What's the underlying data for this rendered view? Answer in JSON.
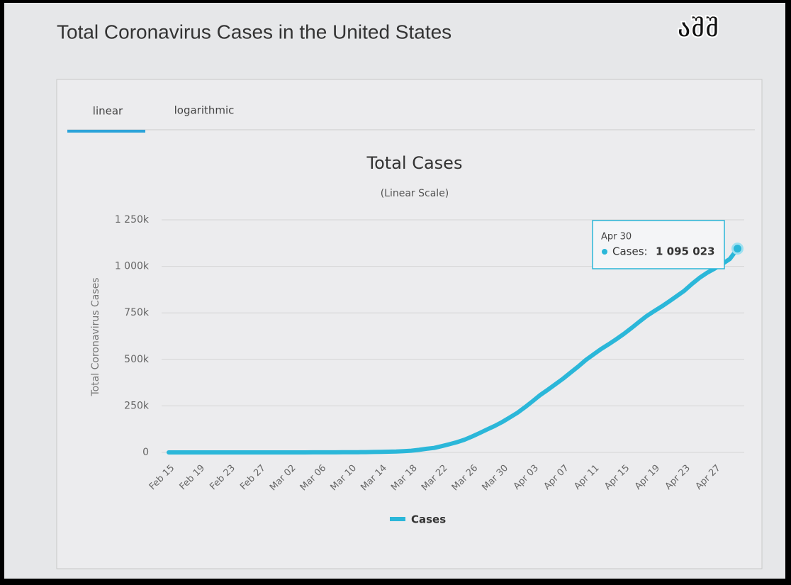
{
  "header": {
    "title": "Total Coronavirus Cases in the United States",
    "logo": "აშშ"
  },
  "tabs": [
    "linear",
    "logarithmic"
  ],
  "chart_data": {
    "type": "line",
    "title": "Total Cases",
    "subtitle": "(Linear Scale)",
    "y_label": "Total Coronavirus Cases",
    "categories": [
      "Feb 15",
      null,
      null,
      null,
      "Feb 19",
      null,
      null,
      null,
      "Feb 23",
      null,
      null,
      null,
      "Feb 27",
      null,
      null,
      null,
      "Mar 02",
      null,
      null,
      null,
      "Mar 06",
      null,
      null,
      null,
      "Mar 10",
      null,
      null,
      null,
      "Mar 14",
      null,
      null,
      null,
      "Mar 18",
      null,
      null,
      null,
      "Mar 22",
      null,
      null,
      null,
      "Mar 26",
      null,
      null,
      null,
      "Mar 30",
      null,
      null,
      null,
      "Apr 03",
      null,
      null,
      null,
      "Apr 07",
      null,
      null,
      null,
      "Apr 11",
      null,
      null,
      null,
      "Apr 15",
      null,
      null,
      null,
      "Apr 19",
      null,
      null,
      null,
      "Apr 23",
      null,
      null,
      null,
      "Apr 27",
      null,
      null,
      null
    ],
    "series": [
      {
        "name": "Cases",
        "color": "#2bb7d9",
        "values": [
          15,
          15,
          15,
          15,
          15,
          15,
          15,
          15,
          15,
          15,
          53,
          53,
          59,
          60,
          68,
          75,
          100,
          124,
          158,
          221,
          319,
          435,
          541,
          704,
          994,
          1301,
          1697,
          2247,
          2943,
          3680,
          4663,
          6411,
          9197,
          13779,
          19367,
          24192,
          33592,
          43781,
          54856,
          68211,
          85435,
          104126,
          123578,
          142460,
          163844,
          188172,
          213372,
          243453,
          275586,
          308850,
          337072,
          366667,
          396223,
          429052,
          461437,
          496535,
          526396,
          555313,
          580619,
          607670,
          636350,
          667801,
          700282,
          732197,
          758809,
          784326,
          811865,
          840351,
          869170,
          905358,
          938154,
          965785,
          988197,
          1012582,
          1039909,
          1095023
        ]
      }
    ],
    "ylim": [
      0,
      1250000
    ],
    "yticks": [
      0,
      {
        "value": 250000,
        "label": "250k"
      },
      {
        "value": 500000,
        "label": "500k"
      },
      {
        "value": 750000,
        "label": "750k"
      },
      {
        "value": 1000000,
        "label": "1 000k"
      },
      {
        "value": 1250000,
        "label": "1 250k"
      }
    ],
    "grid": true,
    "tooltip": {
      "category": "Apr 30",
      "name": "Cases:",
      "value": 1095023,
      "label": "1 095 023"
    }
  }
}
